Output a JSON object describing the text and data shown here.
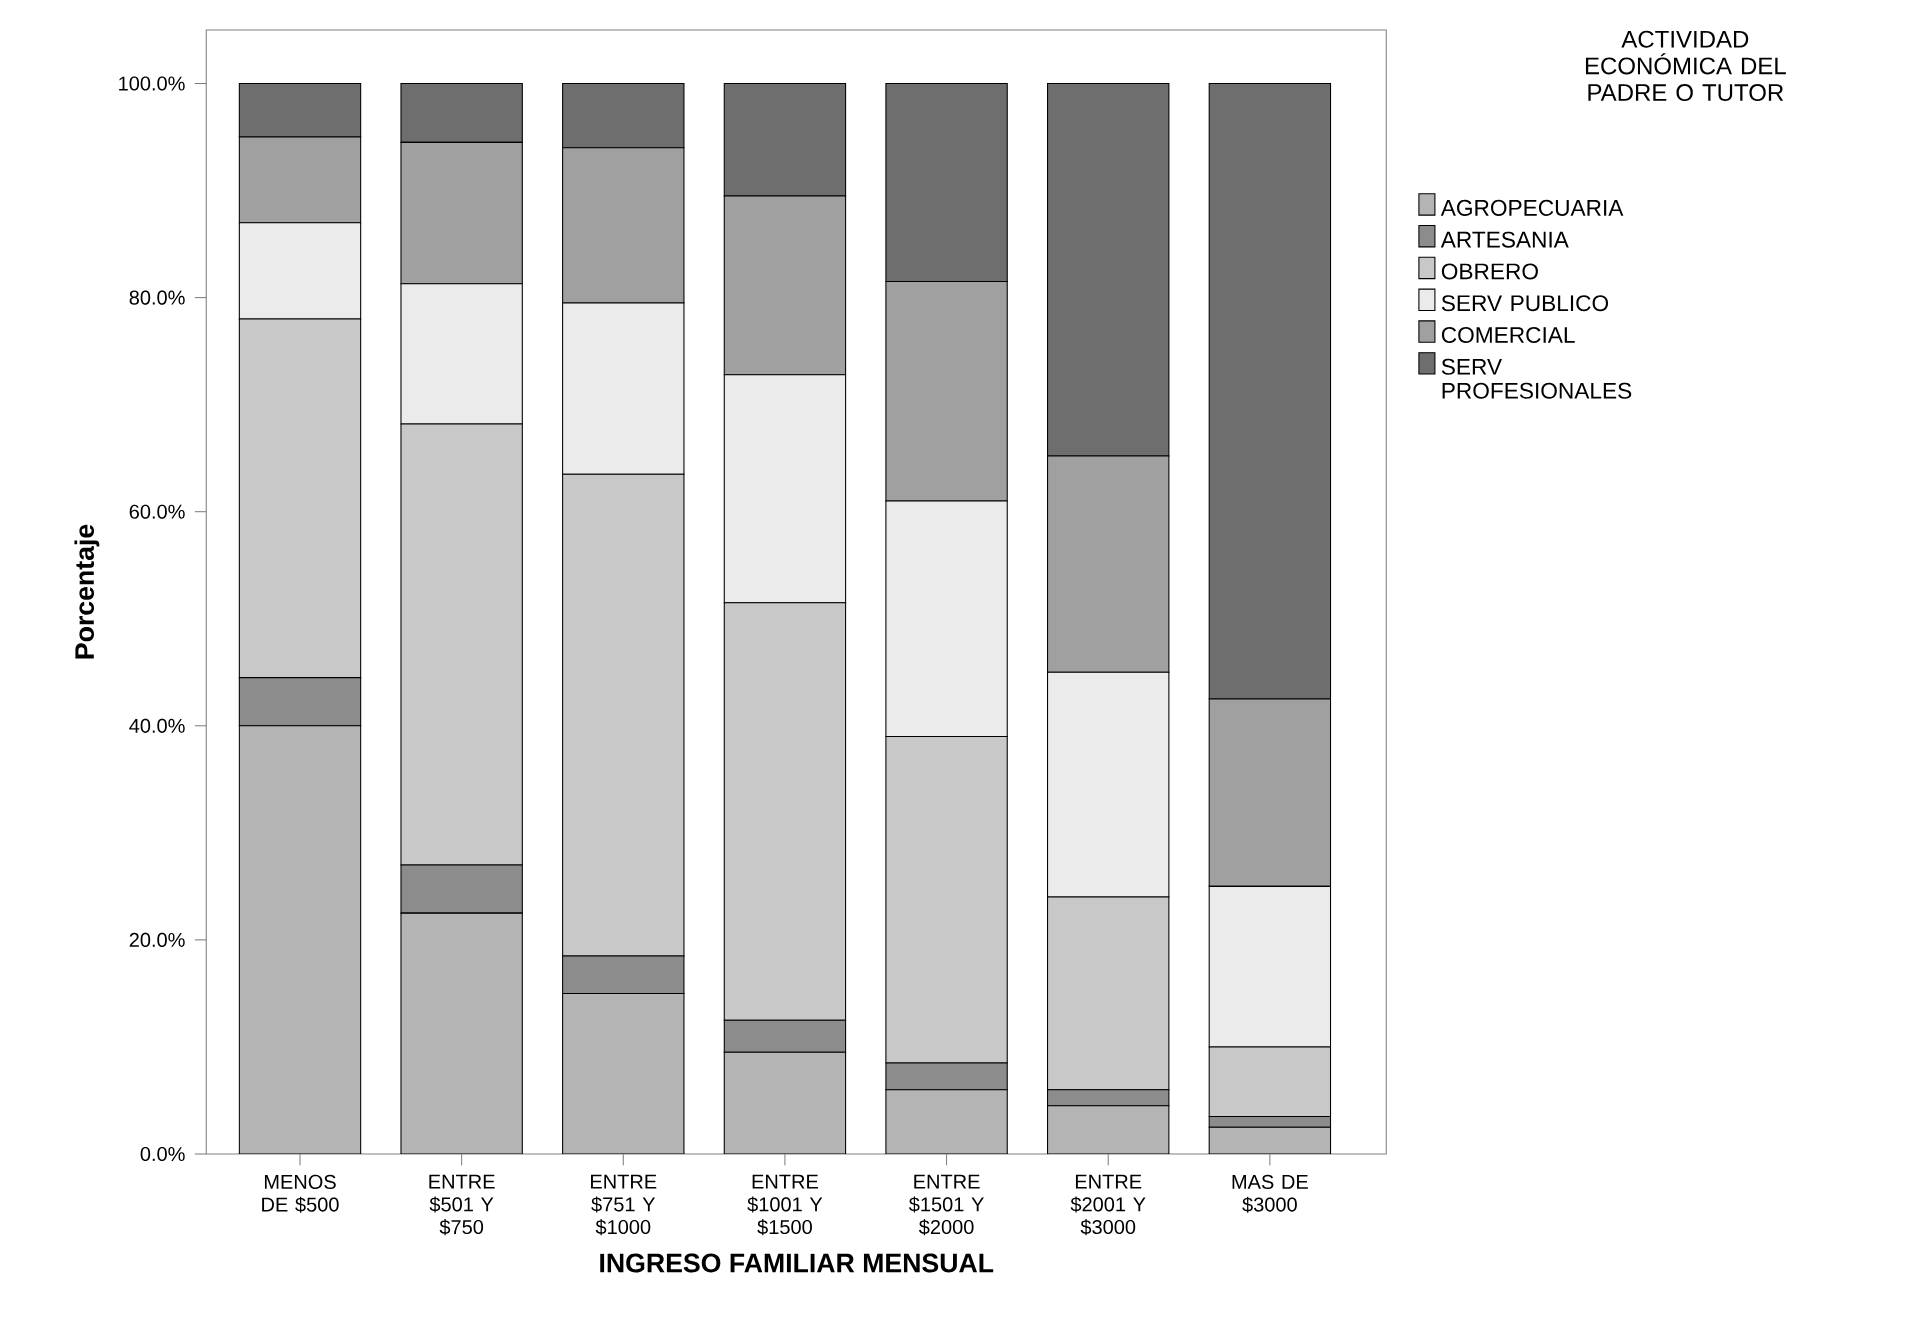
{
  "chart_data": {
    "type": "bar",
    "stacked": true,
    "xlabel": "INGRESO FAMILIAR MENSUAL",
    "ylabel": "Porcentaje",
    "legend_title": "ACTIVIDAD ECONÓMICA DEL PADRE O TUTOR",
    "legend": "right",
    "categories": [
      "MENOS DE $500",
      "ENTRE $501 Y $750",
      "ENTRE $751 Y $1000",
      "ENTRE $1001 Y $1500",
      "ENTRE $1501 Y $2000",
      "ENTRE $2001 Y $3000",
      "MAS DE $3000"
    ],
    "ylim": [
      0,
      105
    ],
    "yticks": [
      {
        "value": 0,
        "label": "0.0%"
      },
      {
        "value": 20,
        "label": "20.0%"
      },
      {
        "value": 40,
        "label": "40.0%"
      },
      {
        "value": 60,
        "label": "60.0%"
      },
      {
        "value": 80,
        "label": "80.0%"
      },
      {
        "value": 100,
        "label": "100.0%"
      }
    ],
    "series": [
      {
        "name": "AGROPECUARIA",
        "color": "#b4b4b4",
        "values": [
          40,
          22.5,
          15,
          9.5,
          6,
          4.5,
          2.5
        ]
      },
      {
        "name": "ARTESANIA",
        "color": "#8c8c8c",
        "values": [
          4.5,
          4.5,
          3.5,
          3,
          2.5,
          1.5,
          1
        ]
      },
      {
        "name": "OBRERO",
        "color": "#c8c8c8",
        "values": [
          33.5,
          41.2,
          45,
          39,
          30.5,
          18,
          6.5
        ]
      },
      {
        "name": "SERV PUBLICO",
        "color": "#ebebeb",
        "values": [
          9,
          13.1,
          16,
          21.3,
          22,
          21,
          15
        ]
      },
      {
        "name": "COMERCIAL",
        "color": "#a0a0a0",
        "values": [
          8,
          13.2,
          14.5,
          16.7,
          20.5,
          20.2,
          17.5
        ]
      },
      {
        "name": "SERV PROFESIONALES",
        "color": "#6e6e6e",
        "values": [
          5,
          5.5,
          6,
          10.5,
          18.5,
          34.8,
          57.5
        ]
      }
    ]
  }
}
